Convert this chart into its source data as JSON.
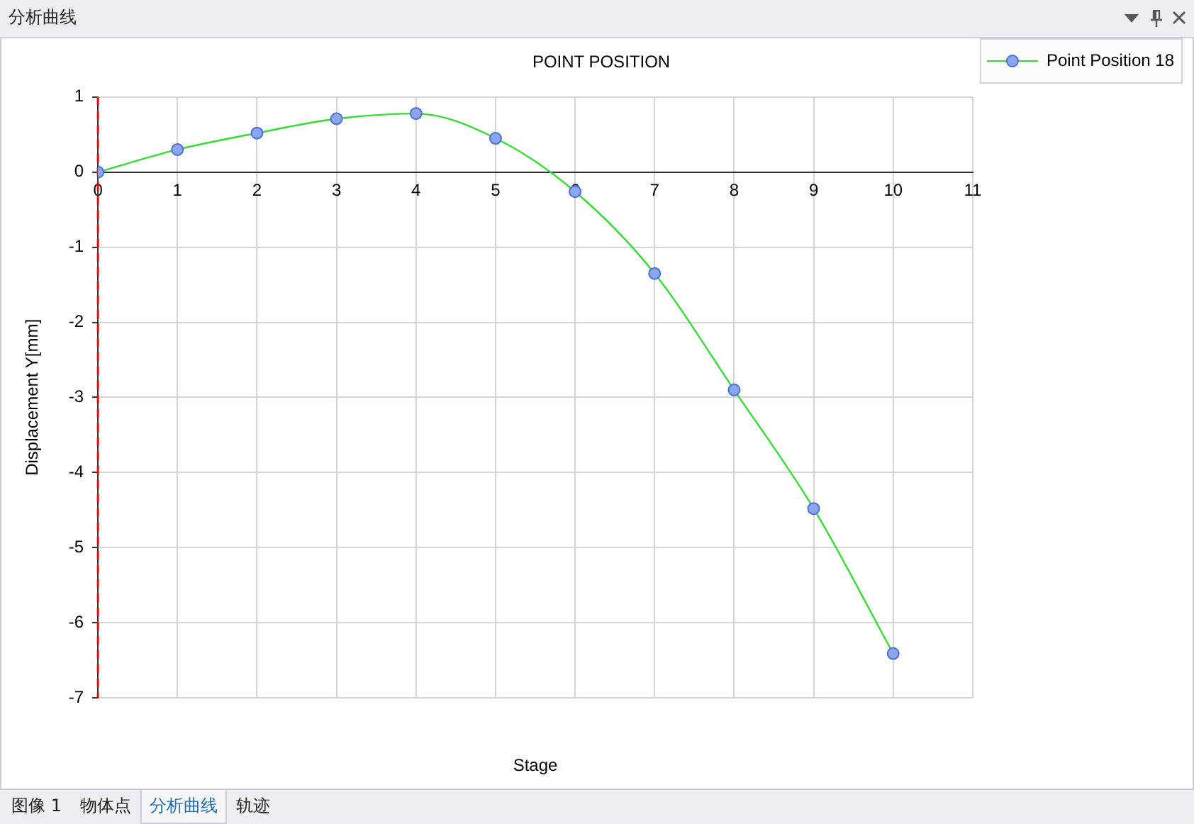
{
  "chart_data": {
    "type": "line",
    "title": "POINT POSITION",
    "xlabel": "Stage",
    "ylabel": "Displacement Y[mm]",
    "x": [
      0,
      1,
      2,
      3,
      4,
      5,
      6,
      7,
      8,
      9,
      10
    ],
    "series": [
      {
        "name": "Point Position 18",
        "color": "#33dd33",
        "values": [
          0,
          0.3,
          0.52,
          0.71,
          0.78,
          0.45,
          -0.26,
          -1.35,
          -2.9,
          -4.48,
          -6.41
        ]
      }
    ],
    "xlim": [
      0,
      11
    ],
    "xticks": [
      0,
      1,
      2,
      3,
      4,
      5,
      6,
      7,
      8,
      9,
      10,
      11
    ],
    "ylim": [
      -7,
      1
    ],
    "yticks": [
      -7,
      -6,
      -5,
      -4,
      -3,
      -2,
      -1,
      0,
      1
    ],
    "grid": true,
    "legend": "top right",
    "marker": "circle",
    "line_style": "solid",
    "ref_lines": [
      {
        "axis": "x",
        "value": 0,
        "color": "#ff0000",
        "line_style": "dashed"
      }
    ],
    "annotations": [
      "分析曲线",
      "图像 1",
      "物体点",
      "分析曲线",
      "轨迹"
    ]
  }
}
